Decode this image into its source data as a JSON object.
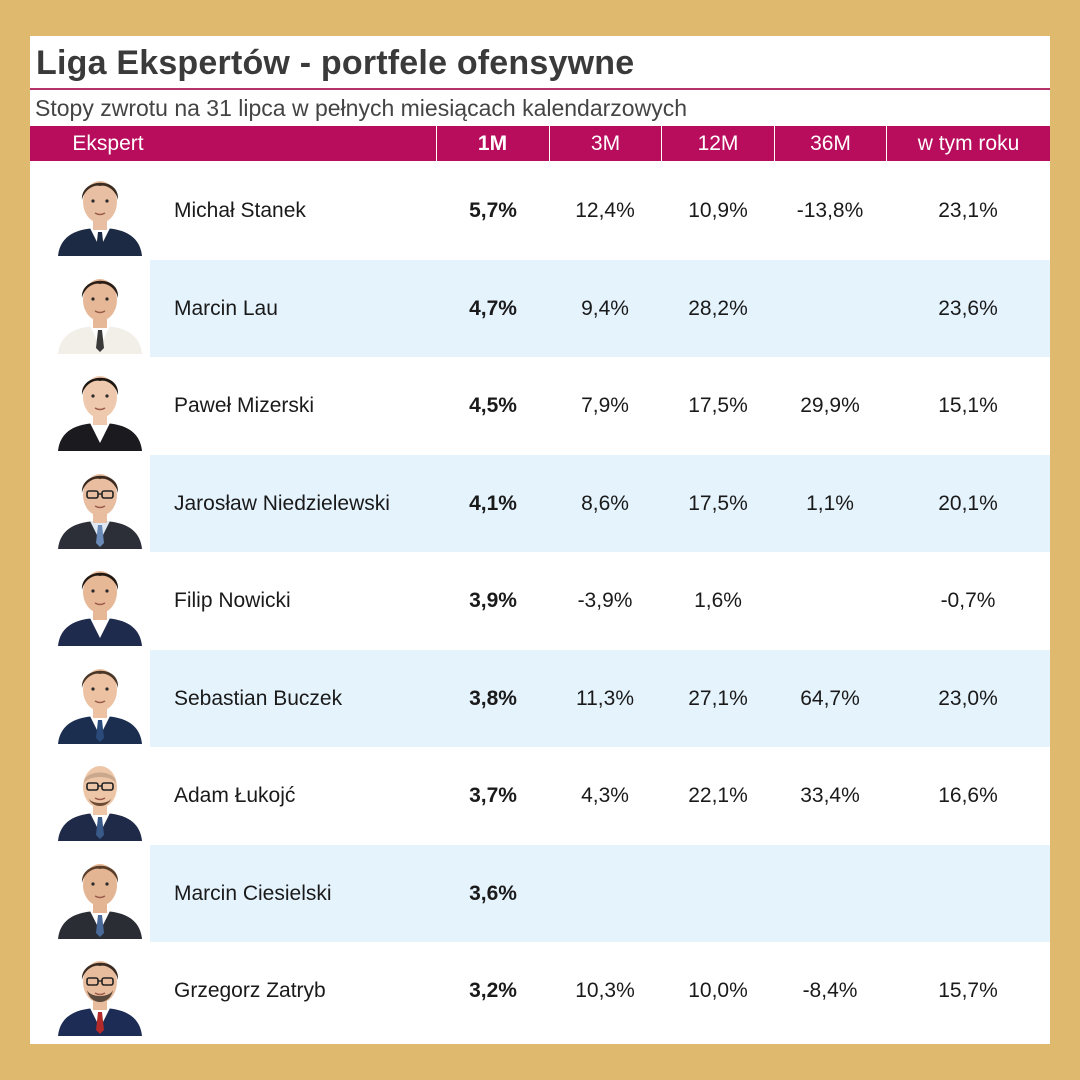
{
  "title": "Liga Ekspertów - portfele ofensywne",
  "subtitle": "Stopy zwrotu na 31 lipca w pełnych miesiącach kalendarzowych",
  "colors": {
    "background": "#dfb96e",
    "header": "#b80d5c",
    "alt_row": "#e5f3fc",
    "title_rule": "#b5326a"
  },
  "chart_data": {
    "type": "table",
    "columns": [
      "Ekspert",
      "1M",
      "3M",
      "12M",
      "36M",
      "w tym roku"
    ],
    "rows": [
      {
        "name": "Michał Stanek",
        "m1": "5,7%",
        "m3": "12,4%",
        "m12": "10,9%",
        "m36": "-13,8%",
        "ytd": "23,1%",
        "photo": "photo-icon"
      },
      {
        "name": "Marcin Lau",
        "m1": "4,7%",
        "m3": "9,4%",
        "m12": "28,2%",
        "m36": "",
        "ytd": "23,6%",
        "photo": "photo-icon"
      },
      {
        "name": "Paweł Mizerski",
        "m1": "4,5%",
        "m3": "7,9%",
        "m12": "17,5%",
        "m36": "29,9%",
        "ytd": "15,1%",
        "photo": "photo-icon"
      },
      {
        "name": "Jarosław Niedzielewski",
        "m1": "4,1%",
        "m3": "8,6%",
        "m12": "17,5%",
        "m36": "1,1%",
        "ytd": "20,1%",
        "photo": "photo-icon"
      },
      {
        "name": "Filip Nowicki",
        "m1": "3,9%",
        "m3": "-3,9%",
        "m12": "1,6%",
        "m36": "",
        "ytd": "-0,7%",
        "photo": "photo-icon"
      },
      {
        "name": "Sebastian Buczek",
        "m1": "3,8%",
        "m3": "11,3%",
        "m12": "27,1%",
        "m36": "64,7%",
        "ytd": "23,0%",
        "photo": "photo-icon"
      },
      {
        "name": "Adam Łukojć",
        "m1": "3,7%",
        "m3": "4,3%",
        "m12": "22,1%",
        "m36": "33,4%",
        "ytd": "16,6%",
        "photo": "photo-icon"
      },
      {
        "name": "Marcin Ciesielski",
        "m1": "3,6%",
        "m3": "",
        "m12": "",
        "m36": "",
        "ytd": "",
        "photo": "photo-icon"
      },
      {
        "name": "Grzegorz Zatryb",
        "m1": "3,2%",
        "m3": "10,3%",
        "m12": "10,0%",
        "m36": "-8,4%",
        "ytd": "15,7%",
        "photo": "photo-icon"
      }
    ]
  }
}
